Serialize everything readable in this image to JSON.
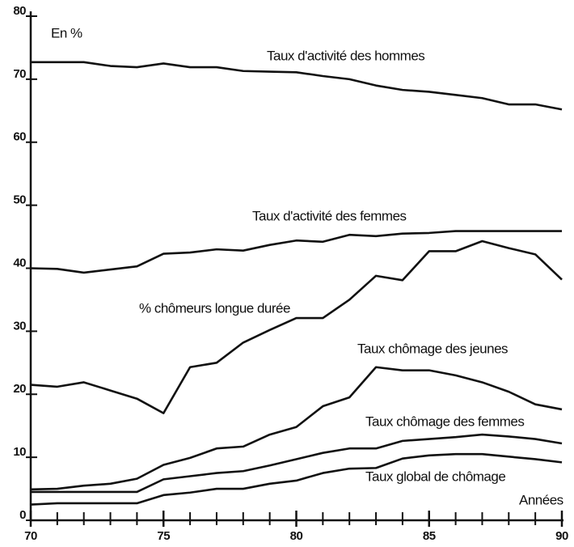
{
  "chart_data": {
    "type": "line",
    "y_label": "En %",
    "x_label": "Années",
    "x": [
      70,
      71,
      72,
      73,
      74,
      75,
      76,
      77,
      78,
      79,
      80,
      81,
      82,
      83,
      84,
      85,
      86,
      87,
      88,
      89,
      90
    ],
    "xlim": [
      70,
      90
    ],
    "xticks": [
      70,
      75,
      80,
      85,
      90
    ],
    "ylim": [
      0,
      80
    ],
    "yticks": [
      0,
      10,
      20,
      30,
      40,
      50,
      60,
      70,
      80
    ],
    "series": [
      {
        "name": "Taux d'activité des hommes",
        "color": "#111111",
        "values": [
          72.7,
          72.7,
          72.7,
          72.1,
          71.9,
          72.5,
          71.9,
          71.9,
          71.3,
          71.2,
          71.1,
          70.5,
          70.0,
          69.0,
          68.3,
          68.0,
          67.5,
          67.0,
          66.0,
          66.0,
          65.2
        ]
      },
      {
        "name": "Taux d'activité des femmes",
        "color": "#111111",
        "values": [
          40.0,
          39.9,
          39.3,
          39.8,
          40.3,
          42.3,
          42.5,
          43.0,
          42.8,
          43.7,
          44.4,
          44.2,
          45.3,
          45.1,
          45.5,
          45.6,
          45.9,
          45.9,
          45.9,
          45.9,
          45.9
        ]
      },
      {
        "name": "% chômeurs longue durée",
        "color": "#111111",
        "values": [
          21.5,
          21.2,
          21.9,
          20.6,
          19.3,
          17.0,
          24.3,
          25.0,
          28.2,
          30.2,
          32.1,
          32.1,
          35.0,
          38.8,
          38.1,
          42.7,
          42.7,
          44.3,
          43.2,
          42.2,
          38.2
        ]
      },
      {
        "name": "Taux chômage des jeunes",
        "color": "#111111",
        "values": [
          4.9,
          5.0,
          5.5,
          5.8,
          6.6,
          8.8,
          9.9,
          11.4,
          11.7,
          13.6,
          14.8,
          18.1,
          19.5,
          24.3,
          23.8,
          23.8,
          23.0,
          21.9,
          20.4,
          18.4,
          17.6
        ]
      },
      {
        "name": "Taux chômage des femmes",
        "color": "#111111",
        "values": [
          4.5,
          4.5,
          4.5,
          4.5,
          4.5,
          6.5,
          7.0,
          7.5,
          7.8,
          8.7,
          9.7,
          10.7,
          11.4,
          11.4,
          12.6,
          12.9,
          13.2,
          13.6,
          13.3,
          12.9,
          12.2
        ]
      },
      {
        "name": "Taux global de chômage",
        "color": "#111111",
        "values": [
          2.5,
          2.7,
          2.7,
          2.7,
          2.7,
          4.0,
          4.4,
          5.0,
          5.0,
          5.8,
          6.3,
          7.5,
          8.2,
          8.3,
          9.8,
          10.3,
          10.5,
          10.5,
          10.1,
          9.7,
          9.2
        ]
      }
    ]
  }
}
